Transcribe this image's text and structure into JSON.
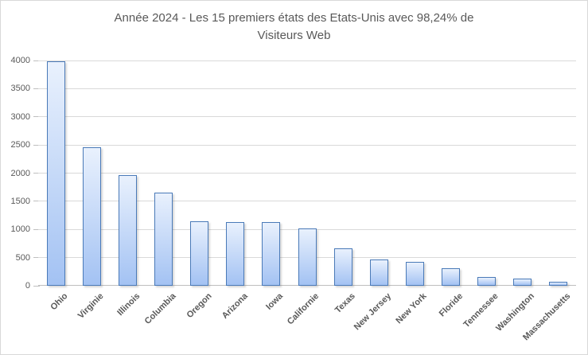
{
  "header": {
    "title_line1": "Année 2024 - Les 15 premiers états des Etats-Unis avec 98,24% de",
    "title_line2": "Visiteurs Web"
  },
  "chart_data": {
    "type": "bar",
    "title": "Année 2024 - Les 15 premiers états des Etats-Unis avec 98,24% de Visiteurs Web",
    "categories": [
      "Ohio",
      "Virginie",
      "Illinois",
      "Columbia",
      "Oregon",
      "Arizona",
      "Iowa",
      "Californie",
      "Texas",
      "New Jersey",
      "New York",
      "Floride",
      "Tennessee",
      "Washington",
      "Massachusetts"
    ],
    "values": [
      3985,
      2460,
      1970,
      1660,
      1150,
      1125,
      1125,
      1015,
      670,
      465,
      430,
      315,
      160,
      130,
      70
    ],
    "xlabel": "",
    "ylabel": "",
    "ylim": [
      0,
      4000
    ],
    "yticks": [
      0,
      500,
      1000,
      1500,
      2000,
      2500,
      3000,
      3500,
      4000
    ],
    "grid": "horizontal",
    "legend": "none",
    "x_label_rotation_deg": 45,
    "colors": {
      "bar_fill_top": "#e9f1fd",
      "bar_fill_bottom": "#a3c2f3",
      "bar_border": "#4a7ab8",
      "gridline": "#d9d9d9",
      "axis_line": "#bfbfbf",
      "text": "#595959",
      "frame_border": "#d9d9d9",
      "background": "#ffffff"
    }
  }
}
